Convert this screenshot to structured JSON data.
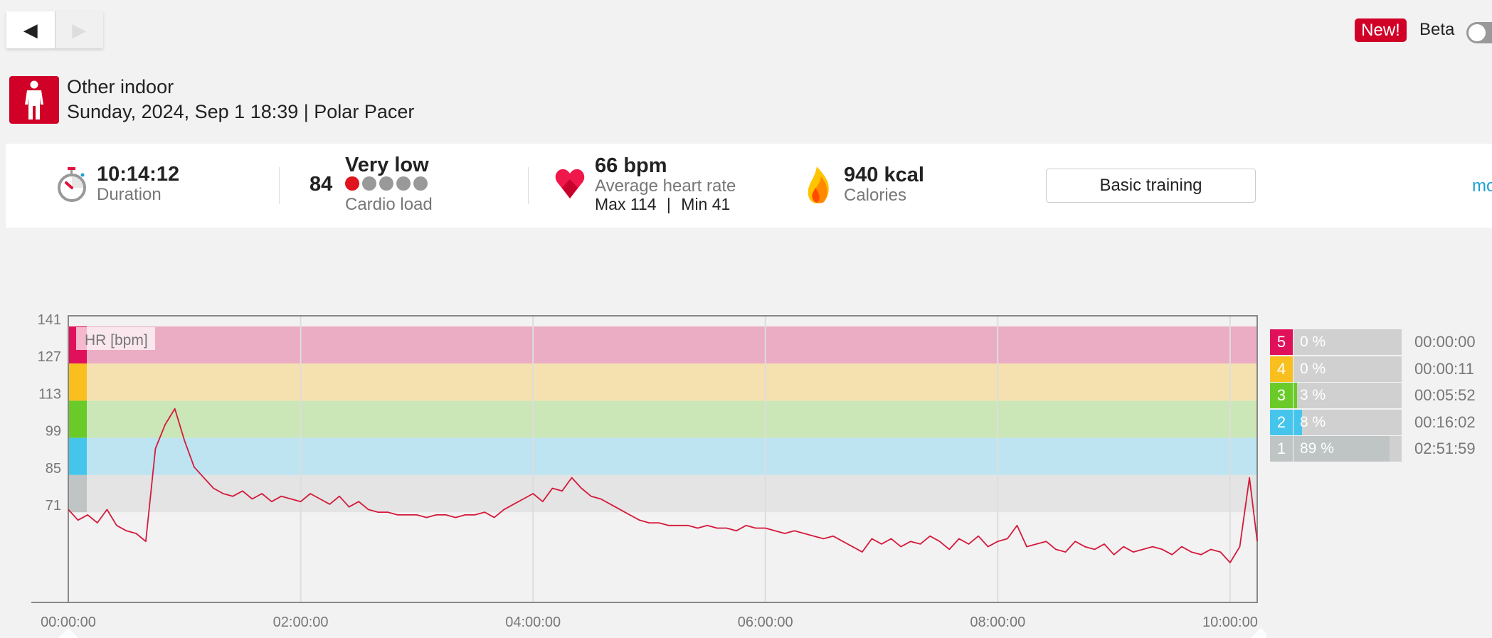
{
  "nav": {
    "prev_icon": "triangle-left",
    "next_icon": "triangle-right"
  },
  "header": {
    "new_badge": "New!",
    "beta_label": "Beta",
    "beta_enabled": false
  },
  "session": {
    "sport_icon": "person-standing",
    "title": "Other indoor",
    "subtitle": "Sunday, 2024, Sep 1 18:39 | Polar Pacer"
  },
  "summary": {
    "duration": {
      "value": "10:14:12",
      "label": "Duration"
    },
    "cardio": {
      "value": "84",
      "level": "Very low",
      "label": "Cardio load",
      "dots_filled": 1,
      "dots_total": 5
    },
    "hr": {
      "value": "66 bpm",
      "label": "Average heart rate",
      "max": "Max 114",
      "sep": "|",
      "min": "Min 41"
    },
    "calories": {
      "value": "940 kcal",
      "label": "Calories"
    },
    "training_button": "Basic training",
    "more_link": "more"
  },
  "colors": {
    "brand": "#d10027",
    "hr_line": "#d41a3c",
    "z5": "#e0115a",
    "z4": "#f9bf1e",
    "z3": "#6acb28",
    "z2": "#45c5ec",
    "z1": "#bfc5c4"
  },
  "zones": [
    {
      "num": "5",
      "pct": "0 %",
      "fraction": 0.0,
      "time": "00:00:00",
      "color": "#e0115a",
      "band": "#ebadc3",
      "lo": 127,
      "hi": 141
    },
    {
      "num": "4",
      "pct": "0 %",
      "fraction": 0.0,
      "time": "00:00:11",
      "color": "#f9bf1e",
      "band": "#f5e1b0",
      "lo": 113,
      "hi": 127
    },
    {
      "num": "3",
      "pct": "3 %",
      "fraction": 0.03,
      "time": "00:05:52",
      "color": "#6acb28",
      "band": "#cbe6b7",
      "lo": 99,
      "hi": 113
    },
    {
      "num": "2",
      "pct": "8 %",
      "fraction": 0.08,
      "time": "00:16:02",
      "color": "#45c5ec",
      "band": "#bee4f1",
      "lo": 85,
      "hi": 99
    },
    {
      "num": "1",
      "pct": "89 %",
      "fraction": 0.89,
      "time": "02:51:59",
      "color": "#bfc5c4",
      "band": "#e3e4e3",
      "lo": 71,
      "hi": 85
    }
  ],
  "chart_data": {
    "type": "line",
    "title": "",
    "series_label": "HR [bpm]",
    "xlabel": "",
    "ylabel": "HR [bpm]",
    "x_unit": "minutes",
    "xlim": [
      0,
      614
    ],
    "ylim": [
      37,
      145
    ],
    "yticks": [
      141,
      127,
      113,
      99,
      85,
      71
    ],
    "xticks": [
      {
        "min": 0,
        "label": "00:00:00"
      },
      {
        "min": 120,
        "label": "02:00:00"
      },
      {
        "min": 240,
        "label": "04:00:00"
      },
      {
        "min": 360,
        "label": "06:00:00"
      },
      {
        "min": 480,
        "label": "08:00:00"
      },
      {
        "min": 600,
        "label": "10:00:00"
      }
    ],
    "grid": true,
    "x_step": 5,
    "values": [
      72,
      68,
      70,
      67,
      72,
      66,
      64,
      63,
      60,
      95,
      104,
      110,
      98,
      88,
      84,
      80,
      78,
      77,
      79,
      76,
      78,
      75,
      77,
      76,
      75,
      78,
      76,
      74,
      77,
      73,
      75,
      72,
      71,
      71,
      70,
      70,
      70,
      69,
      70,
      70,
      69,
      70,
      70,
      71,
      69,
      72,
      74,
      76,
      78,
      75,
      80,
      79,
      84,
      80,
      77,
      76,
      74,
      72,
      70,
      68,
      67,
      67,
      66,
      66,
      66,
      65,
      66,
      65,
      65,
      64,
      66,
      65,
      65,
      64,
      63,
      64,
      63,
      62,
      61,
      62,
      60,
      58,
      56,
      61,
      59,
      61,
      58,
      60,
      59,
      62,
      60,
      57,
      61,
      59,
      62,
      58,
      60,
      61,
      66,
      58,
      59,
      60,
      57,
      56,
      60,
      58,
      57,
      59,
      55,
      58,
      56,
      57,
      58,
      57,
      55,
      58,
      56,
      55,
      57,
      56,
      52,
      58,
      84,
      60
    ]
  }
}
